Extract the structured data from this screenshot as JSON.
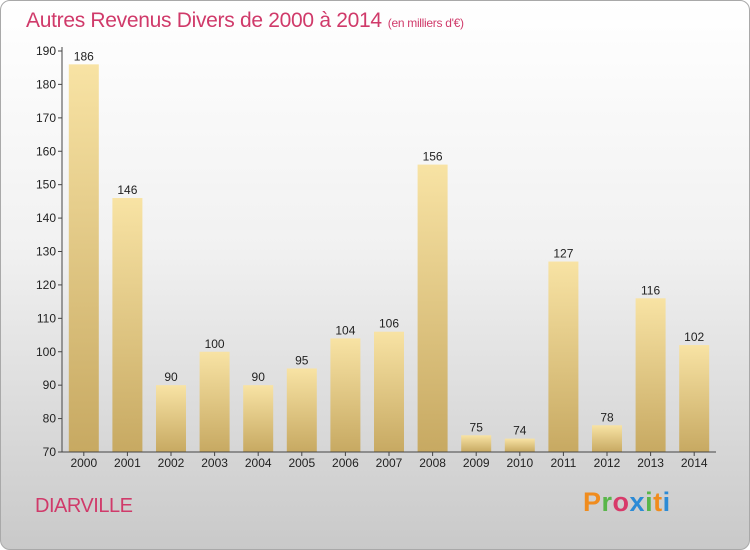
{
  "header": {
    "title": "Autres Revenus Divers de 2000 à 2014",
    "unit": "(en milliers d'€)"
  },
  "footer": {
    "commune": "DIARVILLE",
    "logo_letters": [
      "P",
      "r",
      "o",
      "x",
      "i",
      "t",
      "i"
    ],
    "logo_colors": [
      "#f08c1e",
      "#59b64a",
      "#d83a6a",
      "#2c8bd6",
      "#59b64a",
      "#f08c1e",
      "#2c8bd6"
    ]
  },
  "colors": {
    "bar_light": "#f8e3a4",
    "bar_dark": "#c7a962",
    "title": "#d03a6a"
  },
  "chart_data": {
    "type": "bar",
    "categories": [
      "2000",
      "2001",
      "2002",
      "2003",
      "2004",
      "2005",
      "2006",
      "2007",
      "2008",
      "2009",
      "2010",
      "2011",
      "2012",
      "2013",
      "2014"
    ],
    "values": [
      186,
      146,
      90,
      100,
      90,
      95,
      104,
      106,
      156,
      75,
      74,
      127,
      78,
      116,
      102
    ],
    "ylim": [
      70,
      190
    ],
    "yticks": [
      70,
      80,
      90,
      100,
      110,
      120,
      130,
      140,
      150,
      160,
      170,
      180,
      190
    ],
    "grid": false,
    "xlabel": "",
    "ylabel": ""
  }
}
